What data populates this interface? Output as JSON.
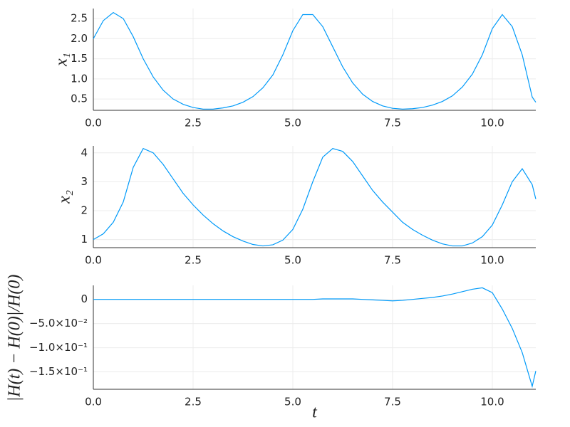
{
  "chart_data": [
    {
      "type": "line",
      "ylabel": "x₁",
      "grid": true,
      "x": [
        0,
        0.25,
        0.5,
        0.75,
        1,
        1.25,
        1.5,
        1.75,
        2,
        2.25,
        2.5,
        2.75,
        3,
        3.25,
        3.5,
        3.75,
        4,
        4.25,
        4.5,
        4.75,
        5,
        5.25,
        5.5,
        5.75,
        6,
        6.25,
        6.5,
        6.75,
        7,
        7.25,
        7.5,
        7.75,
        8,
        8.25,
        8.5,
        8.75,
        9,
        9.25,
        9.5,
        9.75,
        10,
        10.25,
        10.5,
        10.75,
        11,
        11.09
      ],
      "series": [
        {
          "color": "#009af9",
          "values": [
            2.0,
            2.45,
            2.65,
            2.5,
            2.05,
            1.5,
            1.05,
            0.72,
            0.5,
            0.37,
            0.29,
            0.25,
            0.25,
            0.28,
            0.33,
            0.42,
            0.56,
            0.78,
            1.1,
            1.6,
            2.2,
            2.6,
            2.6,
            2.3,
            1.8,
            1.3,
            0.9,
            0.62,
            0.44,
            0.33,
            0.27,
            0.25,
            0.26,
            0.29,
            0.35,
            0.44,
            0.58,
            0.8,
            1.12,
            1.6,
            2.25,
            2.6,
            2.3,
            1.6,
            0.55,
            0.42
          ]
        }
      ],
      "xlim": [
        0,
        11.09
      ],
      "xticks": [
        {
          "value": 0,
          "label": "0.0"
        },
        2.5,
        {
          "value": 5,
          "label": "5.0"
        },
        7.5,
        {
          "value": 10,
          "label": "10.0"
        }
      ],
      "ylim": [
        0.22,
        2.75
      ],
      "yticks": [
        0.5,
        {
          "value": 1,
          "label": "1.0"
        },
        1.5,
        {
          "value": 2,
          "label": "2.0"
        },
        2.5
      ]
    },
    {
      "type": "line",
      "ylabel": "x₂",
      "grid": true,
      "x": [
        0,
        0.25,
        0.5,
        0.75,
        1,
        1.25,
        1.5,
        1.75,
        2,
        2.25,
        2.5,
        2.75,
        3,
        3.25,
        3.5,
        3.75,
        4,
        4.25,
        4.5,
        4.75,
        5,
        5.25,
        5.5,
        5.75,
        6,
        6.25,
        6.5,
        6.75,
        7,
        7.25,
        7.5,
        7.75,
        8,
        8.25,
        8.5,
        8.75,
        9,
        9.25,
        9.5,
        9.75,
        10,
        10.25,
        10.5,
        10.75,
        11,
        11.09
      ],
      "series": [
        {
          "color": "#009af9",
          "values": [
            1.0,
            1.2,
            1.6,
            2.3,
            3.5,
            4.15,
            4.0,
            3.6,
            3.1,
            2.6,
            2.2,
            1.85,
            1.55,
            1.3,
            1.1,
            0.95,
            0.83,
            0.78,
            0.82,
            0.98,
            1.35,
            2.05,
            3.0,
            3.85,
            4.15,
            4.05,
            3.7,
            3.2,
            2.7,
            2.3,
            1.95,
            1.6,
            1.35,
            1.15,
            0.98,
            0.85,
            0.78,
            0.78,
            0.88,
            1.1,
            1.5,
            2.2,
            3.0,
            3.45,
            2.9,
            2.4
          ]
        }
      ],
      "xlim": [
        0,
        11.09
      ],
      "xticks": [
        {
          "value": 0,
          "label": "0.0"
        },
        2.5,
        {
          "value": 5,
          "label": "5.0"
        },
        7.5,
        {
          "value": 10,
          "label": "10.0"
        }
      ],
      "ylim": [
        0.72,
        4.24
      ],
      "yticks": [
        1,
        2,
        3,
        4
      ]
    },
    {
      "type": "line",
      "ylabel": "|H(t) − H(0)|/H(0)",
      "xlabel": "t",
      "grid": true,
      "x": [
        0,
        0.25,
        0.5,
        0.75,
        1,
        1.25,
        1.5,
        1.75,
        2,
        2.25,
        2.5,
        2.75,
        3,
        3.25,
        3.5,
        3.75,
        4,
        4.25,
        4.5,
        4.75,
        5,
        5.25,
        5.5,
        5.75,
        6,
        6.25,
        6.5,
        6.75,
        7,
        7.25,
        7.5,
        7.75,
        8,
        8.25,
        8.5,
        8.75,
        9,
        9.25,
        9.5,
        9.75,
        10,
        10.25,
        10.5,
        10.75,
        11,
        11.09
      ],
      "series": [
        {
          "color": "#009af9",
          "values": [
            0,
            0,
            0,
            0,
            0,
            0,
            0,
            0,
            0,
            0,
            0,
            0,
            0,
            0,
            0,
            0,
            0,
            0,
            0,
            0,
            0,
            0,
            0,
            0.001,
            0.001,
            0.001,
            0.001,
            0,
            -0.001,
            -0.002,
            -0.003,
            -0.002,
            0,
            0.002,
            0.004,
            0.007,
            0.011,
            0.016,
            0.021,
            0.024,
            0.014,
            -0.02,
            -0.06,
            -0.11,
            -0.18,
            -0.148
          ]
        }
      ],
      "xlim": [
        0,
        11.09
      ],
      "xticks": [
        {
          "value": 0,
          "label": "0.0"
        },
        2.5,
        {
          "value": 5,
          "label": "5.0"
        },
        7.5,
        {
          "value": 10,
          "label": "10.0"
        }
      ],
      "ylim": [
        -0.186,
        0.029
      ],
      "yticks": [
        0,
        {
          "value": -0.05,
          "label": "−5.0×10⁻²"
        },
        {
          "value": -0.1,
          "label": "−1.0×10⁻¹"
        },
        {
          "value": -0.15,
          "label": "−1.5×10⁻¹"
        }
      ]
    }
  ]
}
